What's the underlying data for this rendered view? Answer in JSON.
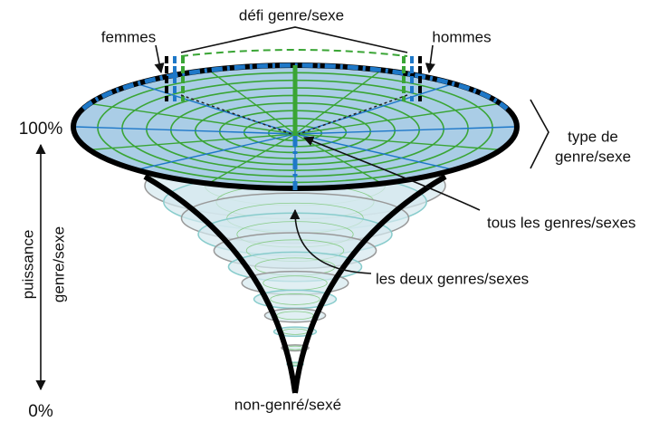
{
  "labels": {
    "challenge": "défi genre/sexe",
    "women": "femmes",
    "men": "hommes",
    "top_percent": "100%",
    "bottom_percent": "0%",
    "type_label": [
      "type de",
      "genre/sexe"
    ],
    "power_label": [
      "puissance",
      "genre/sexe"
    ],
    "all_genders": "tous les genres/sexes",
    "both_genders": "les deux genres/sexes",
    "non_gendered": "non-genré/sexé"
  }
}
